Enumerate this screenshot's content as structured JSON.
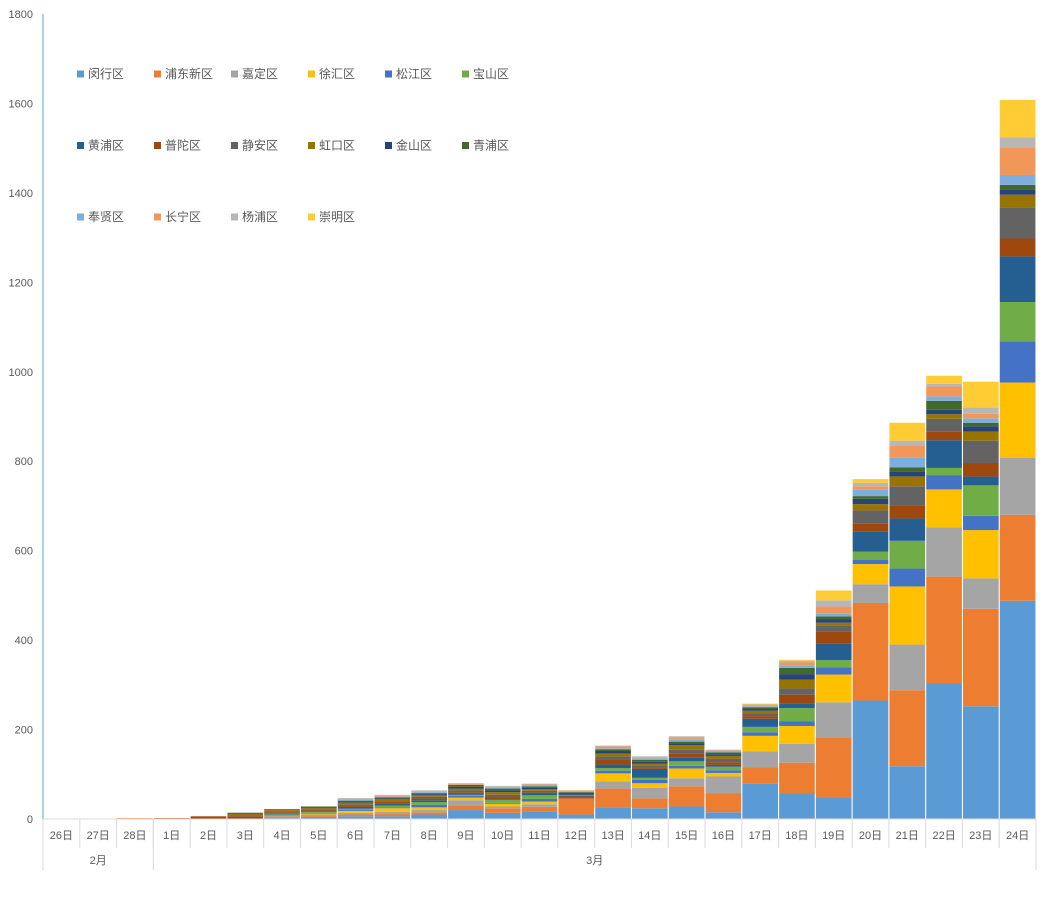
{
  "chart_data": {
    "type": "bar",
    "stacked": true,
    "title": "",
    "xlabel": "",
    "ylabel": "",
    "ylim": [
      0,
      1800
    ],
    "yticks": [
      "0",
      "200",
      "400",
      "600",
      "800",
      "1000",
      "1200",
      "1400",
      "1600",
      "1800"
    ],
    "grid": false,
    "legend_position": "top-left",
    "categories": [
      "26日",
      "27日",
      "28日",
      "1日",
      "2日",
      "3日",
      "4日",
      "5日",
      "6日",
      "7日",
      "8日",
      "9日",
      "10日",
      "11日",
      "12日",
      "13日",
      "14日",
      "15日",
      "16日",
      "17日",
      "18日",
      "19日",
      "20日",
      "21日",
      "22日",
      "23日",
      "24日"
    ],
    "month_groups": [
      {
        "label": "2月",
        "count": 3
      },
      {
        "label": "3月",
        "count": 24
      }
    ],
    "series": [
      {
        "name": "闵行区",
        "color": "#5b9bd5",
        "values": [
          0,
          0,
          0,
          0,
          0,
          0,
          4,
          5,
          6,
          6,
          10,
          20,
          14,
          17,
          10,
          26,
          24,
          28,
          15,
          80,
          58,
          48,
          265,
          118,
          304,
          252,
          488
        ]
      },
      {
        "name": "浦东新区",
        "color": "#ed7d31",
        "values": [
          0,
          0,
          2,
          0,
          0,
          0,
          2,
          3,
          4,
          5,
          5,
          10,
          10,
          10,
          36,
          42,
          22,
          45,
          42,
          36,
          68,
          135,
          218,
          170,
          238,
          218,
          192
        ]
      },
      {
        "name": "嘉定区",
        "color": "#a5a5a5",
        "values": [
          0,
          0,
          0,
          0,
          0,
          0,
          2,
          2,
          4,
          5,
          5,
          12,
          4,
          6,
          0,
          16,
          24,
          18,
          38,
          35,
          42,
          78,
          42,
          102,
          110,
          68,
          128
        ]
      },
      {
        "name": "徐汇区",
        "color": "#ffc000",
        "values": [
          0,
          0,
          0,
          0,
          0,
          0,
          0,
          2,
          4,
          8,
          6,
          6,
          6,
          6,
          0,
          18,
          10,
          22,
          8,
          35,
          40,
          62,
          45,
          130,
          85,
          108,
          168
        ]
      },
      {
        "name": "松江区",
        "color": "#4472c4",
        "values": [
          0,
          0,
          0,
          0,
          0,
          0,
          2,
          2,
          2,
          2,
          6,
          4,
          2,
          6,
          0,
          6,
          8,
          6,
          6,
          8,
          10,
          16,
          10,
          40,
          32,
          32,
          92
        ]
      },
      {
        "name": "宝山区",
        "color": "#70ad47",
        "values": [
          0,
          0,
          0,
          0,
          0,
          0,
          2,
          2,
          3,
          4,
          6,
          2,
          6,
          8,
          0,
          6,
          4,
          10,
          8,
          12,
          30,
          16,
          18,
          62,
          16,
          68,
          88
        ]
      },
      {
        "name": "黄浦区",
        "color": "#255e91",
        "values": [
          0,
          0,
          0,
          0,
          0,
          0,
          2,
          2,
          4,
          4,
          4,
          4,
          2,
          4,
          0,
          8,
          20,
          8,
          4,
          18,
          10,
          38,
          44,
          50,
          62,
          20,
          102
        ]
      },
      {
        "name": "普陀区",
        "color": "#9e480e",
        "values": [
          0,
          0,
          0,
          2,
          6,
          6,
          2,
          2,
          2,
          4,
          4,
          2,
          4,
          2,
          2,
          10,
          4,
          10,
          6,
          6,
          20,
          26,
          18,
          28,
          20,
          30,
          40
        ]
      },
      {
        "name": "静安区",
        "color": "#636363",
        "values": [
          0,
          0,
          0,
          0,
          0,
          2,
          2,
          2,
          4,
          2,
          4,
          4,
          6,
          4,
          4,
          8,
          4,
          8,
          8,
          6,
          14,
          14,
          30,
          44,
          28,
          50,
          70
        ]
      },
      {
        "name": "虹口区",
        "color": "#997300",
        "values": [
          0,
          0,
          0,
          0,
          0,
          4,
          2,
          2,
          4,
          4,
          4,
          4,
          6,
          4,
          2,
          6,
          4,
          10,
          6,
          6,
          20,
          6,
          14,
          22,
          10,
          20,
          28
        ]
      },
      {
        "name": "金山区",
        "color": "#264478",
        "values": [
          0,
          0,
          0,
          0,
          0,
          2,
          0,
          2,
          2,
          2,
          2,
          4,
          4,
          4,
          4,
          6,
          4,
          4,
          4,
          4,
          12,
          8,
          12,
          10,
          10,
          12,
          12
        ]
      },
      {
        "name": "青浦区",
        "color": "#43682b",
        "values": [
          0,
          0,
          0,
          0,
          0,
          0,
          2,
          2,
          2,
          2,
          2,
          4,
          4,
          2,
          2,
          4,
          4,
          4,
          4,
          4,
          14,
          6,
          6,
          10,
          20,
          8,
          10
        ]
      },
      {
        "name": "奉贤区",
        "color": "#7cafdd",
        "values": [
          0,
          0,
          0,
          0,
          0,
          0,
          0,
          0,
          2,
          2,
          2,
          0,
          2,
          2,
          2,
          2,
          4,
          4,
          2,
          2,
          6,
          6,
          14,
          22,
          10,
          10,
          22
        ]
      },
      {
        "name": "长宁区",
        "color": "#f1975a",
        "values": [
          0,
          0,
          0,
          0,
          0,
          0,
          0,
          0,
          2,
          2,
          2,
          2,
          2,
          2,
          2,
          4,
          2,
          4,
          2,
          2,
          6,
          16,
          8,
          26,
          22,
          10,
          62
        ]
      },
      {
        "name": "杨浦区",
        "color": "#b7b7b7",
        "values": [
          0,
          0,
          0,
          0,
          0,
          0,
          0,
          0,
          2,
          2,
          2,
          2,
          2,
          2,
          0,
          2,
          2,
          4,
          2,
          2,
          4,
          14,
          8,
          12,
          6,
          14,
          22
        ]
      },
      {
        "name": "崇明区",
        "color": "#ffcd33",
        "values": [
          0,
          0,
          0,
          0,
          0,
          0,
          0,
          0,
          0,
          0,
          0,
          0,
          0,
          0,
          0,
          0,
          0,
          0,
          0,
          2,
          2,
          22,
          8,
          40,
          18,
          58,
          84
        ]
      }
    ]
  }
}
